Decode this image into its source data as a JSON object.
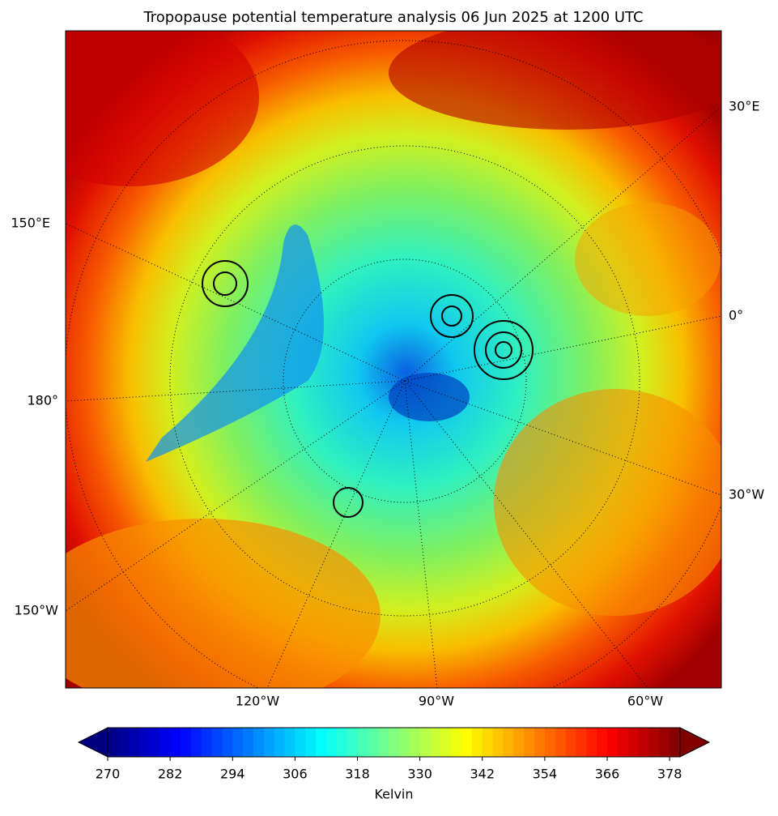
{
  "title": "Tropopause potential temperature analysis 06 Jun 2025 at 1200 UTC",
  "map": {
    "lon_labels": [
      "30°E",
      "150°E",
      "0°",
      "180°",
      "30°W",
      "150°W",
      "120°W",
      "90°W",
      "60°W"
    ]
  },
  "colorbar": {
    "label": "Kelvin",
    "lim": [
      270,
      380
    ],
    "step": 2,
    "ticks": [
      270,
      282,
      294,
      306,
      318,
      330,
      342,
      354,
      366,
      378
    ]
  }
}
